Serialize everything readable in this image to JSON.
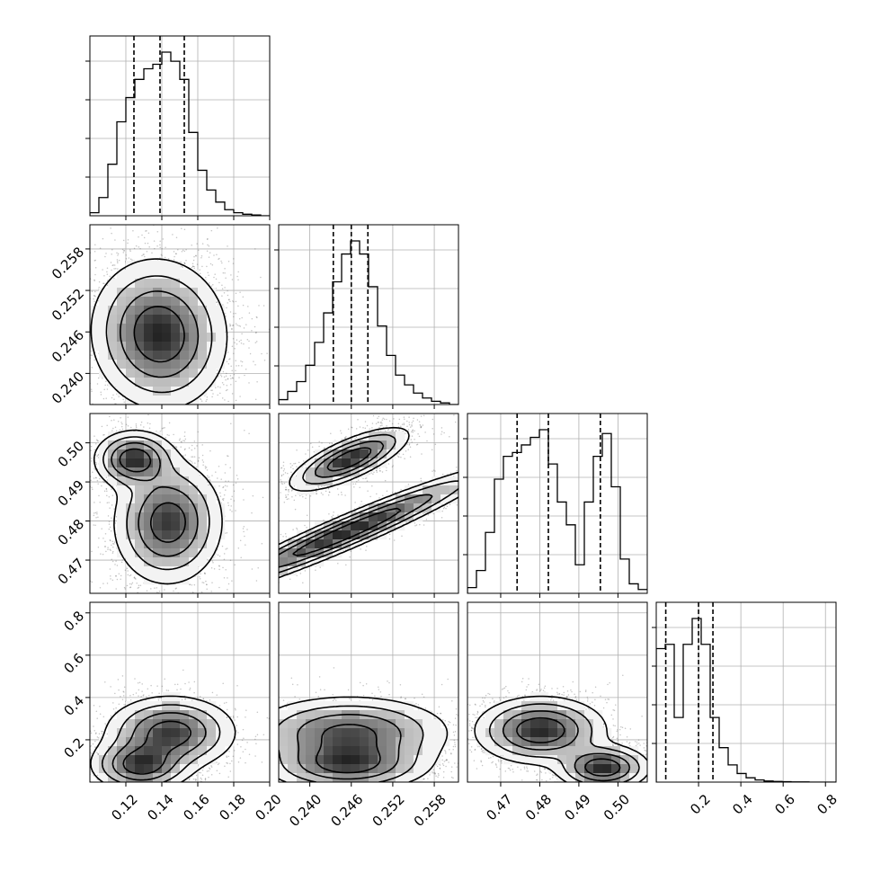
{
  "chart_data": {
    "type": "corner",
    "grid": true,
    "parameters": [
      {
        "range": [
          0.1,
          0.2
        ],
        "ticks": [
          0.12,
          0.14,
          0.16,
          0.18,
          0.2
        ],
        "tick_labels": [
          "0.12",
          "0.14",
          "0.16",
          "0.18",
          "0.20"
        ],
        "quantiles": [
          0.1245,
          0.139,
          0.1525
        ],
        "histogram": {
          "edges": [
            0.1,
            0.105,
            0.11,
            0.115,
            0.12,
            0.125,
            0.13,
            0.135,
            0.14,
            0.145,
            0.15,
            0.155,
            0.16,
            0.165,
            0.17,
            0.175,
            0.18,
            0.185,
            0.19,
            0.195,
            0.2
          ],
          "counts": [
            2,
            12,
            34,
            62,
            78,
            90,
            97,
            100,
            108,
            102,
            90,
            55,
            30,
            17,
            9,
            4,
            2,
            1,
            0.5,
            0
          ]
        }
      },
      {
        "range": [
          0.2355,
          0.2615
        ],
        "ticks": [
          0.24,
          0.246,
          0.252,
          0.258
        ],
        "tick_labels": [
          "0.240",
          "0.246",
          "0.252",
          "0.258"
        ],
        "quantiles": [
          0.2434,
          0.246,
          0.2484
        ],
        "histogram": {
          "edges": [
            0.2355,
            0.2368,
            0.2381,
            0.2394,
            0.2407,
            0.242,
            0.2433,
            0.2446,
            0.2459,
            0.2472,
            0.2485,
            0.2498,
            0.2511,
            0.2524,
            0.2537,
            0.255,
            0.2563,
            0.2576,
            0.2589,
            0.2602,
            0.2615
          ],
          "counts": [
            3,
            8,
            14,
            24,
            38,
            56,
            75,
            92,
            100,
            92,
            72,
            48,
            30,
            18,
            12,
            7,
            4,
            2,
            1,
            0
          ]
        }
      },
      {
        "range": [
          0.4615,
          0.5075
        ],
        "ticks": [
          0.47,
          0.48,
          0.49,
          0.5
        ],
        "tick_labels": [
          "0.47",
          "0.48",
          "0.49",
          "0.50"
        ],
        "quantiles": [
          0.4742,
          0.4822,
          0.4955
        ],
        "histogram": {
          "edges": [
            0.4615,
            0.4638,
            0.4661,
            0.4684,
            0.4707,
            0.473,
            0.4753,
            0.4776,
            0.4799,
            0.4822,
            0.4845,
            0.4868,
            0.4891,
            0.4914,
            0.4937,
            0.496,
            0.4983,
            0.5006,
            0.5029,
            0.5052,
            0.5075
          ],
          "counts": [
            3,
            12,
            32,
            60,
            72,
            74,
            78,
            82,
            86,
            68,
            48,
            36,
            15,
            48,
            72,
            84,
            56,
            18,
            5,
            2
          ]
        }
      },
      {
        "range": [
          0,
          0.85
        ],
        "ticks": [
          0.2,
          0.4,
          0.6,
          0.8
        ],
        "tick_labels": [
          "0.2",
          "0.4",
          "0.6",
          "0.8"
        ],
        "quantiles": [
          0.045,
          0.2,
          0.268
        ],
        "histogram": {
          "edges": [
            0,
            0.0425,
            0.085,
            0.1275,
            0.17,
            0.2125,
            0.255,
            0.2975,
            0.34,
            0.3825,
            0.425,
            0.4675,
            0.51,
            0.5525,
            0.595,
            0.6375,
            0.68,
            0.7225,
            0.765,
            0.8075,
            0.85
          ],
          "counts": [
            62,
            64,
            30,
            64,
            76,
            64,
            30,
            16,
            8,
            4,
            2,
            1,
            0.5,
            0.3,
            0.2,
            0.1,
            0.1,
            0,
            0,
            0
          ]
        }
      }
    ],
    "pairs": [
      {
        "row": 1,
        "col": 0,
        "modes": [
          {
            "x": [
              0.1315,
              0.1395,
              0.1445
            ],
            "y": [
              0.24677,
              0.24555,
              0.24475
            ],
            "sx": 0.0175,
            "sy": 0.0052
          }
        ]
      },
      {
        "row": 2,
        "col": 0,
        "modes": [
          {
            "x": [
              0.1245
            ],
            "y": [
              0.4958
            ],
            "sx": 0.0108,
            "sy": 0.0036
          },
          {
            "x": [
              0.1445,
              0.1425
            ],
            "y": [
              0.4815,
              0.4777
            ],
            "sx": 0.0148,
            "sy": 0.0075
          }
        ]
      },
      {
        "row": 2,
        "col": 1,
        "modes": [
          {
            "x": [
              0.2457
            ],
            "y": [
              0.4958
            ],
            "sx": 0.0042,
            "sy": 0.0026,
            "slope": 0.7
          },
          {
            "x": [
              0.2454
            ],
            "y": [
              0.4772
            ],
            "sx": 0.0105,
            "sy": 0.0023,
            "slope": 0.75
          }
        ]
      },
      {
        "row": 3,
        "col": 0,
        "modes": [
          {
            "x": [
              0.145
            ],
            "y": [
              0.235
            ],
            "sx": 0.0178,
            "sy": 0.085
          },
          {
            "x": [
              0.125,
              0.131
            ],
            "y": [
              0.085,
              0.072
            ],
            "sx": 0.0132,
            "sy": 0.062
          }
        ]
      },
      {
        "row": 3,
        "col": 1,
        "modes": [
          {
            "x": [
              0.2457
            ],
            "y": [
              0.235
            ],
            "sx": 0.0072,
            "sy": 0.085
          },
          {
            "x": [
              0.2458,
              0.2452
            ],
            "y": [
              0.09,
              0.07
            ],
            "sx": 0.0058,
            "sy": 0.062
          }
        ]
      },
      {
        "row": 3,
        "col": 2,
        "modes": [
          {
            "x": [
              0.4802
            ],
            "y": [
              0.245
            ],
            "sx": 0.0082,
            "sy": 0.078,
            "slope": 0.085
          },
          {
            "x": [
              0.4962
            ],
            "y": [
              0.068
            ],
            "sx": 0.0058,
            "sy": 0.052
          }
        ]
      }
    ]
  }
}
